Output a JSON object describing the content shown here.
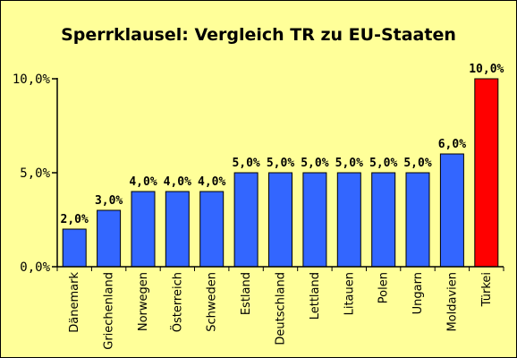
{
  "chart_data": {
    "type": "bar",
    "title": "Sperrklausel: Vergleich TR zu EU-Staaten",
    "xlabel": "",
    "ylabel": "",
    "ylim": [
      0,
      10
    ],
    "yticks": [
      {
        "value": 0,
        "label": "0,0%"
      },
      {
        "value": 5,
        "label": "5,0%"
      },
      {
        "value": 10,
        "label": "10,0%"
      }
    ],
    "grid": false,
    "legend": "none",
    "categories": [
      "Dänemark",
      "Griechenland",
      "Norwegen",
      "Österreich",
      "Schweden",
      "Estland",
      "Deutschland",
      "Lettland",
      "Litauen",
      "Polen",
      "Ungarn",
      "Moldavien",
      "Türkei"
    ],
    "values": [
      2.0,
      3.0,
      4.0,
      4.0,
      4.0,
      5.0,
      5.0,
      5.0,
      5.0,
      5.0,
      5.0,
      6.0,
      10.0
    ],
    "data_labels": [
      "2,0%",
      "3,0%",
      "4,0%",
      "4,0%",
      "4,0%",
      "5,0%",
      "5,0%",
      "5,0%",
      "5,0%",
      "5,0%",
      "5,0%",
      "6,0%",
      "10,0%"
    ],
    "colors": {
      "default_bar": "#3366ff",
      "highlight_bar": "#ff0000",
      "highlight_category": "Türkei",
      "background": "#ffff99"
    }
  }
}
